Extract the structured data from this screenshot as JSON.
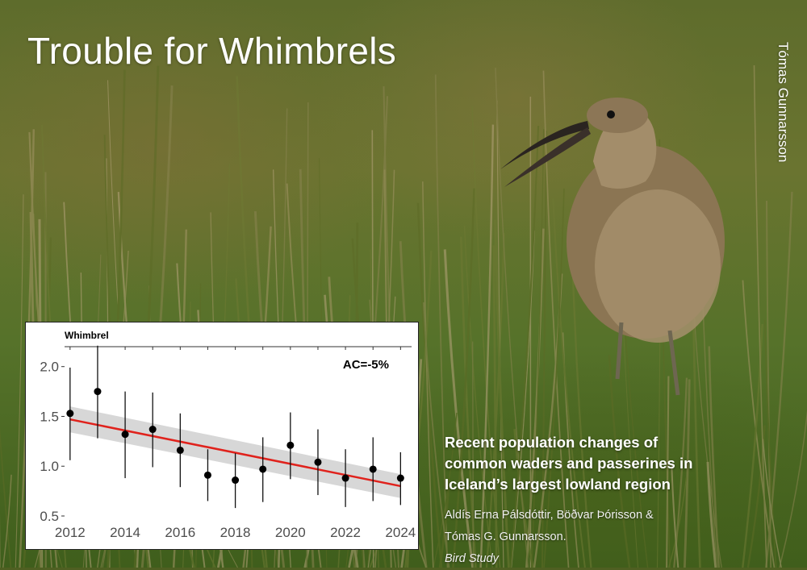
{
  "title": "Trouble for Whimbrels",
  "photo_credit": "Tómas Gunnarsson",
  "photo": {
    "subject": "whimbrel-in-grass"
  },
  "paper": {
    "title_lines": [
      "Recent population changes of",
      "common waders and passerines in",
      "Iceland’s largest lowland region"
    ],
    "authors_line1": "Aldís Erna Pálsdóttir, Böðvar Þórisson &",
    "authors_line2": "Tómas G. Gunnarsson.",
    "journal": "Bird Study"
  },
  "chart_data": {
    "type": "scatter",
    "title": "Whimbrel",
    "annotation": "AC=-5%",
    "xlim": [
      2011.8,
      2024.4
    ],
    "ylim": [
      0.5,
      2.2
    ],
    "x_ticks": [
      2012,
      2014,
      2016,
      2018,
      2020,
      2022,
      2024
    ],
    "y_ticks": [
      0.5,
      1.0,
      1.5,
      2.0
    ],
    "y_tick_labels": [
      "0.5",
      "1.0",
      "1.5",
      "2.0"
    ],
    "points": [
      {
        "x": 2012,
        "y": 1.53,
        "lo": 1.06,
        "hi": 1.99
      },
      {
        "x": 2013,
        "y": 1.75,
        "lo": 1.28,
        "hi": 2.21
      },
      {
        "x": 2014,
        "y": 1.32,
        "lo": 0.88,
        "hi": 1.75
      },
      {
        "x": 2015,
        "y": 1.37,
        "lo": 0.99,
        "hi": 1.74
      },
      {
        "x": 2016,
        "y": 1.16,
        "lo": 0.79,
        "hi": 1.53
      },
      {
        "x": 2017,
        "y": 0.91,
        "lo": 0.65,
        "hi": 1.17
      },
      {
        "x": 2018,
        "y": 0.86,
        "lo": 0.58,
        "hi": 1.13
      },
      {
        "x": 2019,
        "y": 0.97,
        "lo": 0.64,
        "hi": 1.29
      },
      {
        "x": 2020,
        "y": 1.21,
        "lo": 0.87,
        "hi": 1.54
      },
      {
        "x": 2021,
        "y": 1.04,
        "lo": 0.71,
        "hi": 1.37
      },
      {
        "x": 2022,
        "y": 0.88,
        "lo": 0.59,
        "hi": 1.17
      },
      {
        "x": 2023,
        "y": 0.97,
        "lo": 0.65,
        "hi": 1.29
      },
      {
        "x": 2024,
        "y": 0.88,
        "lo": 0.61,
        "hi": 1.14
      }
    ],
    "trend": {
      "x": [
        2012,
        2024
      ],
      "y": [
        1.47,
        0.8
      ]
    },
    "band": {
      "x": [
        2012,
        2024
      ],
      "upper": [
        1.6,
        0.92
      ],
      "lower": [
        1.34,
        0.68
      ]
    },
    "colors": {
      "point": "#000000",
      "trend": "#e0221c",
      "band": "#d3d3d3",
      "axis_text": "#4d4d4d"
    }
  }
}
